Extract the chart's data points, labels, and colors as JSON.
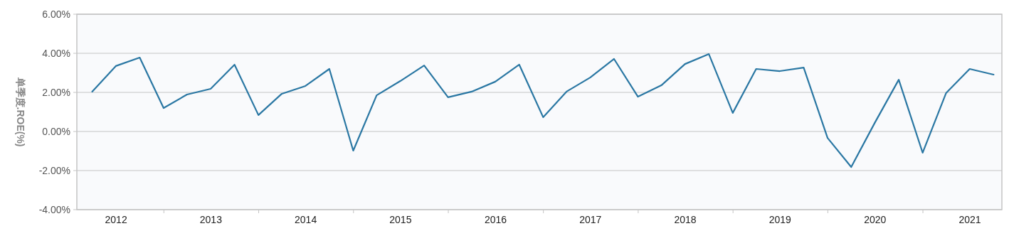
{
  "chart_data": {
    "type": "line",
    "ylabel": "单季度.ROE(%)",
    "x": [
      "2012-03-31",
      "2012-06-30",
      "2012-09-30",
      "2012-12-31",
      "2013-03-31",
      "2013-06-30",
      "2013-09-30",
      "2013-12-31",
      "2014-03-31",
      "2014-06-30",
      "2014-09-30",
      "2014-12-31",
      "2015-03-31",
      "2015-06-30",
      "2015-09-30",
      "2015-12-31",
      "2016-03-31",
      "2016-06-30",
      "2016-09-30",
      "2016-12-31",
      "2017-03-31",
      "2017-06-30",
      "2017-09-30",
      "2017-12-31",
      "2018-03-31",
      "2018-06-30",
      "2018-09-30",
      "2018-12-31",
      "2019-03-31",
      "2019-06-30",
      "2019-09-30",
      "2019-12-31",
      "2020-03-31",
      "2020-06-30",
      "2020-09-30",
      "2020-12-31",
      "2021-03-31",
      "2021-06-30",
      "2021-09-30"
    ],
    "series": [
      {
        "color": "#2a77a3",
        "values": [
          2.04,
          3.35,
          3.78,
          1.2,
          1.89,
          2.18,
          3.42,
          0.84,
          1.93,
          2.33,
          3.2,
          -0.98,
          1.85,
          2.58,
          3.38,
          1.75,
          2.04,
          2.55,
          3.42,
          0.73,
          2.04,
          2.76,
          3.71,
          1.78,
          2.36,
          3.45,
          3.96,
          0.95,
          3.2,
          3.09,
          3.27,
          -0.33,
          -1.82,
          0.45,
          2.65,
          -1.09,
          1.96,
          3.2,
          2.91
        ]
      }
    ],
    "xlim": [
      "2012-02-01",
      "2021-11-01"
    ],
    "xticks": [
      {
        "value": "2012-07-01",
        "label": "2012"
      },
      {
        "value": "2013-01-01",
        "label": null
      },
      {
        "value": "2013-07-01",
        "label": "2013"
      },
      {
        "value": "2014-01-01",
        "label": null
      },
      {
        "value": "2014-07-01",
        "label": "2014"
      },
      {
        "value": "2015-01-01",
        "label": null
      },
      {
        "value": "2015-07-01",
        "label": "2015"
      },
      {
        "value": "2016-01-01",
        "label": null
      },
      {
        "value": "2016-07-01",
        "label": "2016"
      },
      {
        "value": "2017-01-01",
        "label": null
      },
      {
        "value": "2017-07-01",
        "label": "2017"
      },
      {
        "value": "2018-01-01",
        "label": null
      },
      {
        "value": "2018-07-01",
        "label": "2018"
      },
      {
        "value": "2019-01-01",
        "label": null
      },
      {
        "value": "2019-07-01",
        "label": "2019"
      },
      {
        "value": "2020-01-01",
        "label": null
      },
      {
        "value": "2020-07-01",
        "label": "2020"
      },
      {
        "value": "2021-01-01",
        "label": null
      },
      {
        "value": "2021-07-01",
        "label": "2021"
      }
    ],
    "ylim": [
      -4,
      6
    ],
    "yticks": [
      {
        "value": -4,
        "label": "-4.00%"
      },
      {
        "value": -2,
        "label": "-2.00%"
      },
      {
        "value": 0,
        "label": "0.00%"
      },
      {
        "value": 2,
        "label": "2.00%"
      },
      {
        "value": 4,
        "label": "4.00%"
      },
      {
        "value": 6,
        "label": "6.00%"
      }
    ],
    "grid": "y",
    "marker": "none",
    "line_style": "solid"
  }
}
